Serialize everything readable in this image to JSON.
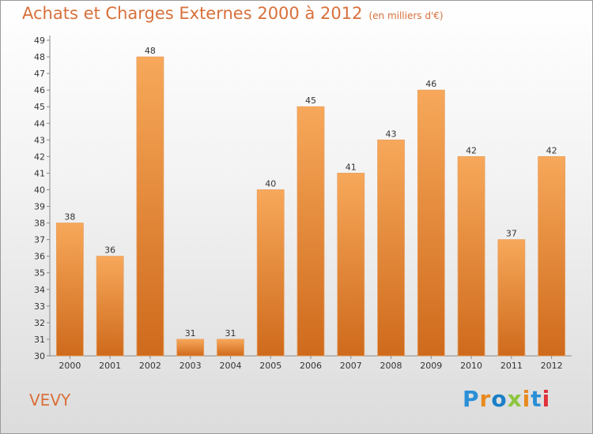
{
  "header": {
    "title": "Achats et Charges Externes 2000 à 2012",
    "subtitle": "(en milliers d'€)"
  },
  "footer": {
    "place": "VEVY",
    "brand": "Proxiti"
  },
  "colors": {
    "accent": "#d8703a",
    "bar_top": "#f7a85a",
    "bar_bottom": "#cf6a1c"
  },
  "chart_data": {
    "type": "bar",
    "title": "Achats et Charges Externes 2000 à 2012",
    "subtitle": "(en milliers d'€)",
    "categories": [
      "2000",
      "2001",
      "2002",
      "2003",
      "2004",
      "2005",
      "2006",
      "2007",
      "2008",
      "2009",
      "2010",
      "2011",
      "2012"
    ],
    "values": [
      38,
      36,
      48,
      31,
      31,
      40,
      45,
      41,
      43,
      46,
      42,
      37,
      42
    ],
    "ylim": [
      30,
      49
    ],
    "yticks": [
      30,
      31,
      32,
      33,
      34,
      35,
      36,
      37,
      38,
      39,
      40,
      41,
      42,
      43,
      44,
      45,
      46,
      47,
      48,
      49
    ],
    "grid": false,
    "data_labels": true
  }
}
